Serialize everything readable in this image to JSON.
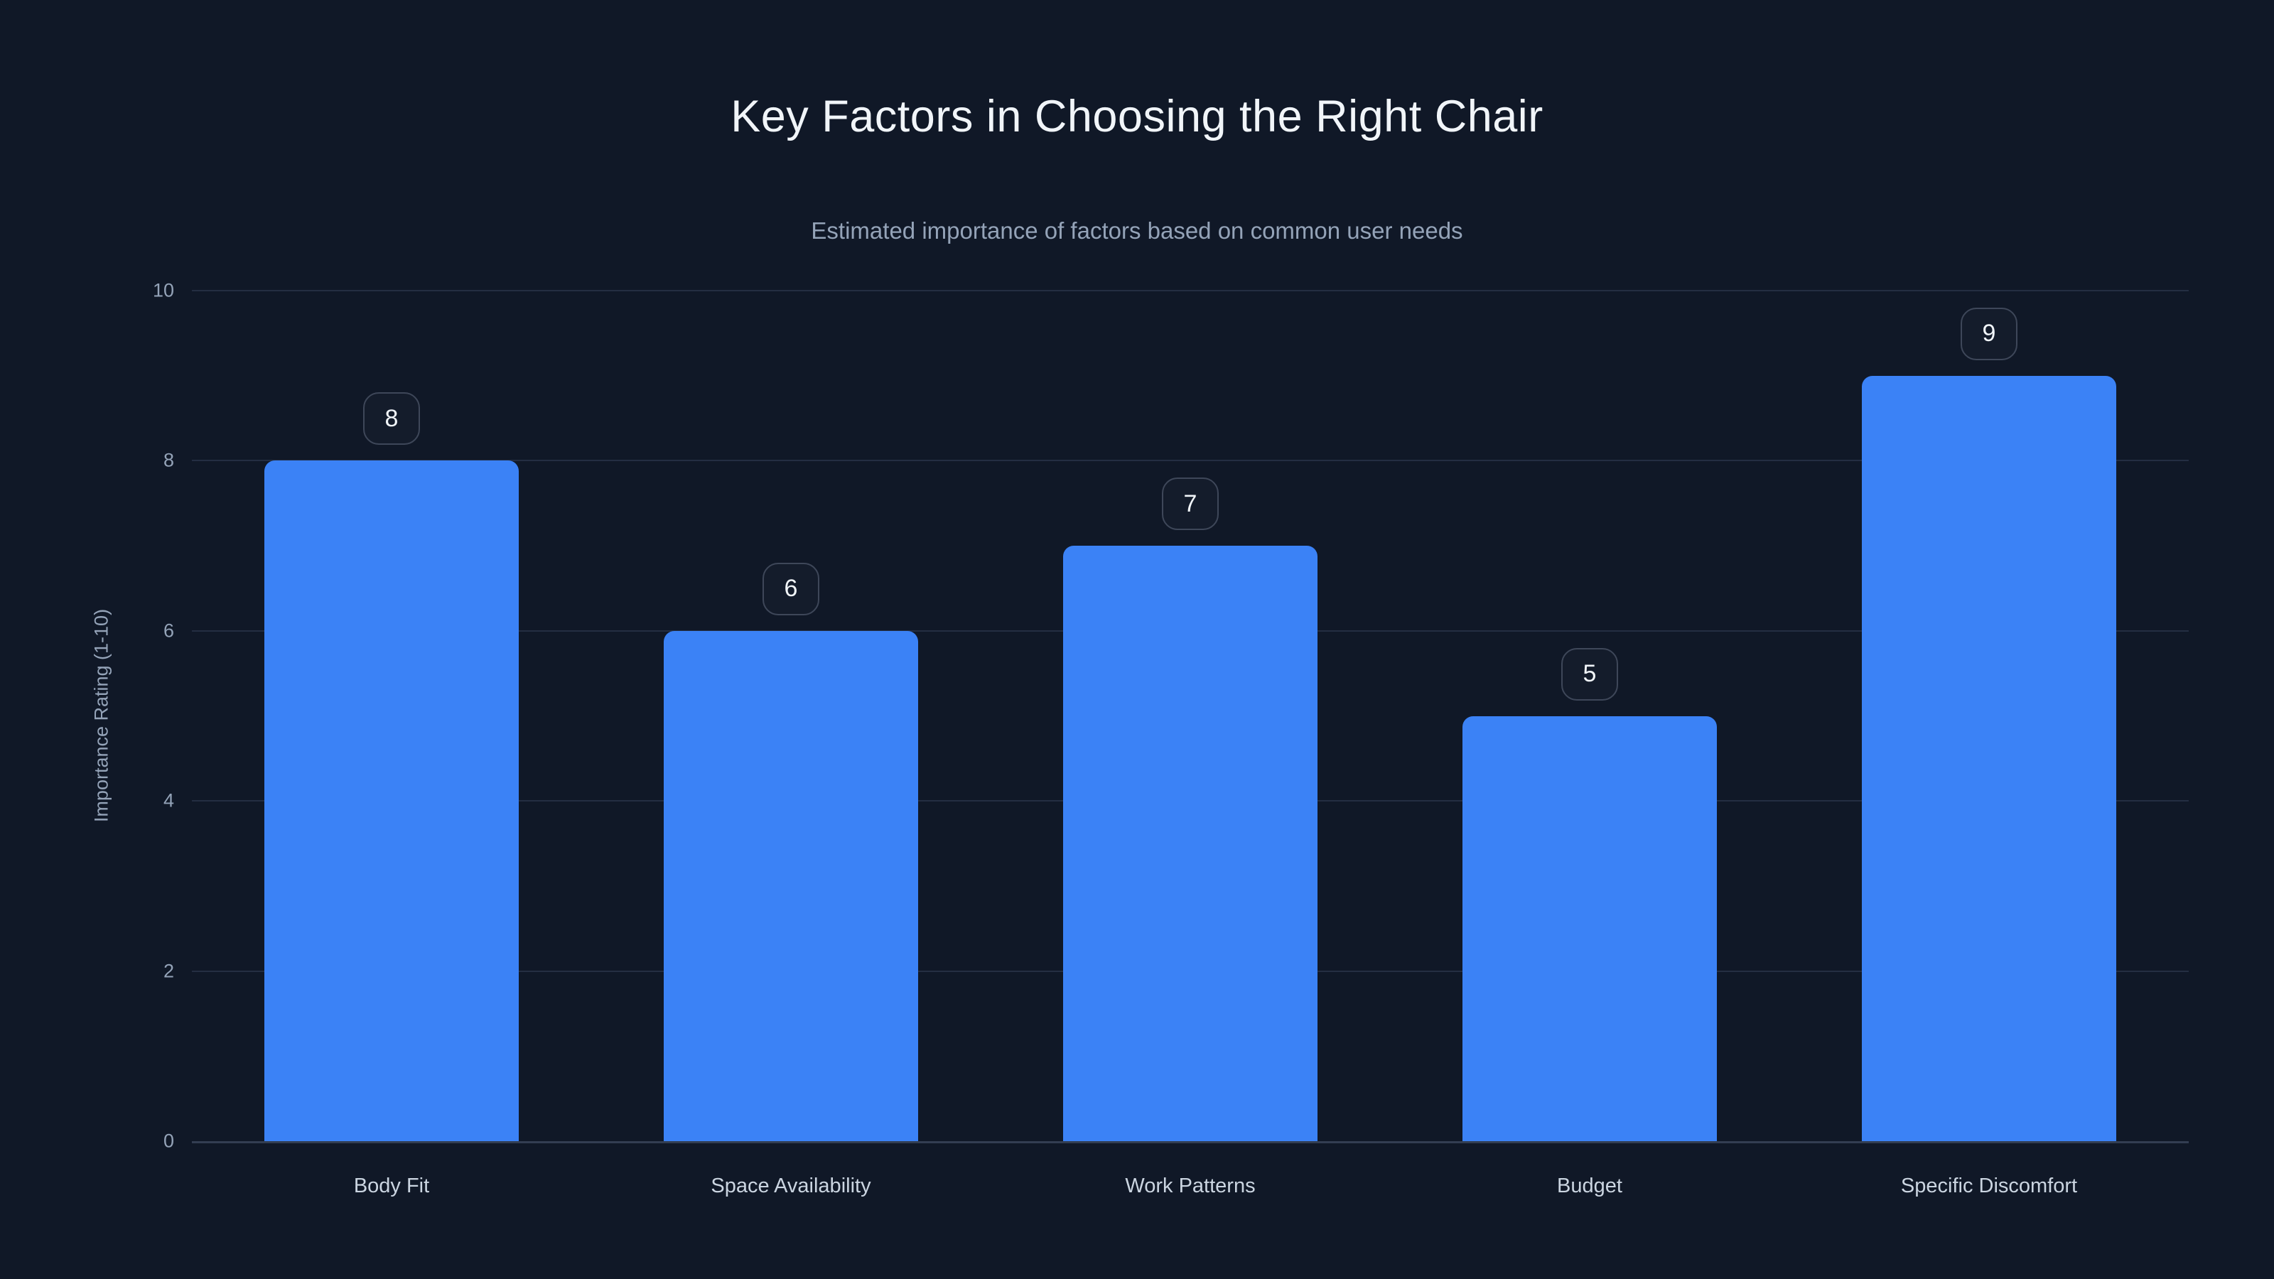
{
  "chart_data": {
    "type": "bar",
    "title": "Key Factors in Choosing the Right Chair",
    "subtitle": "Estimated importance of factors based on common user needs",
    "categories": [
      "Body Fit",
      "Space Availability",
      "Work Patterns",
      "Budget",
      "Specific Discomfort"
    ],
    "values": [
      8,
      6,
      7,
      5,
      9
    ],
    "data_labels": [
      "8",
      "6",
      "7",
      "5",
      "9"
    ],
    "xlabel": "",
    "ylabel": "Importance Rating (1-10)",
    "ylim": [
      0,
      10
    ],
    "yticks": [
      0,
      2,
      4,
      6,
      8,
      10
    ],
    "grid": true,
    "legend": false,
    "colors": {
      "background": "#101827",
      "bar": "#3b82f6",
      "title": "#f1f5f9",
      "subtitle": "#94a3b8",
      "tick_label": "#94a3b8",
      "category_label": "#cbd5e1",
      "gridline": "#242e42",
      "axis_line": "#333e52",
      "badge_border": "#3e4759",
      "badge_text": "#f1f5f9"
    }
  }
}
